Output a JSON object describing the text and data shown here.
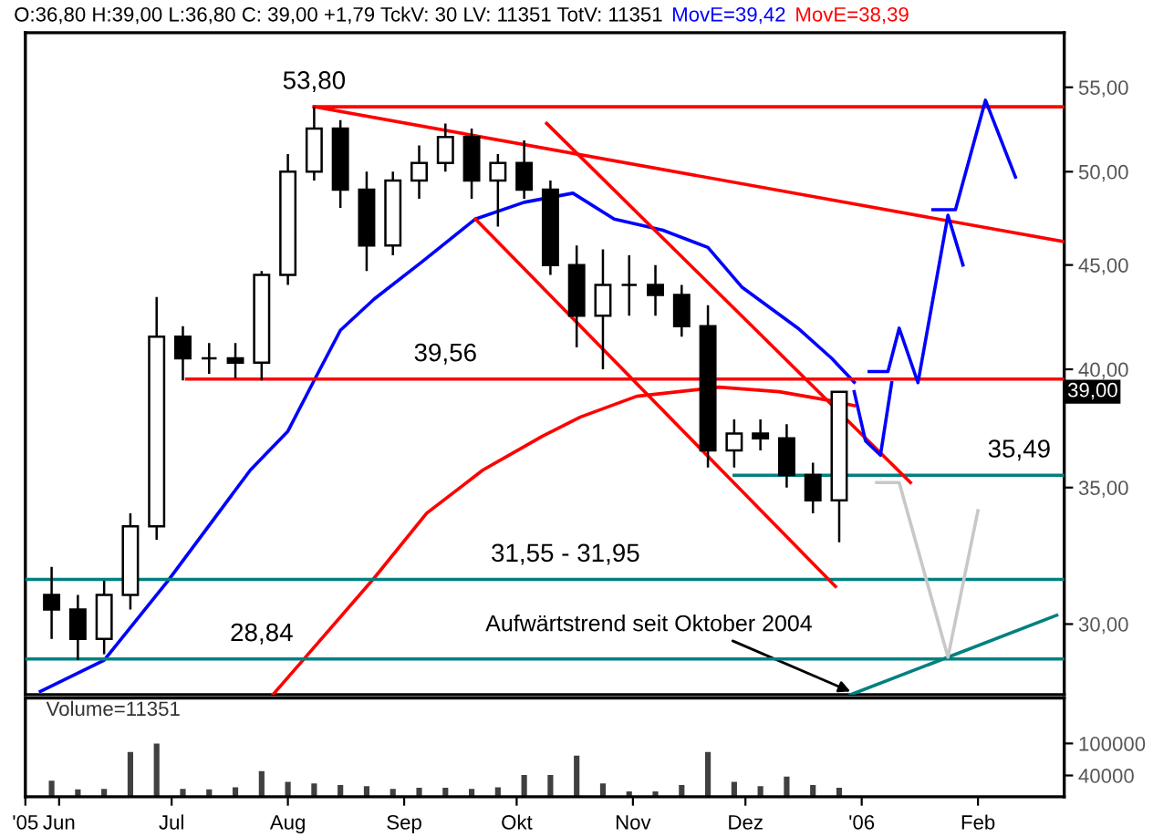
{
  "chart_data": [
    {
      "type": "candlestick",
      "title": "O:36,80 H:39,00 L:36,80 C: 39,00 +1,79 TckV: 30 LV: 11351 TotV: 11351",
      "x": [
        "2005-05-30",
        "2005-06-06",
        "2005-06-13",
        "2005-06-20",
        "2005-06-27",
        "2005-07-04",
        "2005-07-11",
        "2005-07-18",
        "2005-07-25",
        "2005-08-01",
        "2005-08-08",
        "2005-08-15",
        "2005-08-22",
        "2005-08-29",
        "2005-09-05",
        "2005-09-12",
        "2005-09-19",
        "2005-09-26",
        "2005-10-03",
        "2005-10-10",
        "2005-10-17",
        "2005-10-24",
        "2005-10-31",
        "2005-11-07",
        "2005-11-14",
        "2005-11-21",
        "2005-11-28",
        "2005-12-05",
        "2005-12-12",
        "2005-12-19",
        "2005-12-26"
      ],
      "ohlc": [
        [
          31,
          32,
          29.5,
          30.5
        ],
        [
          30.5,
          31,
          28.8,
          29.5
        ],
        [
          29.5,
          31.5,
          29,
          31
        ],
        [
          31,
          34,
          30.5,
          33.5
        ],
        [
          33.5,
          43.4,
          33,
          41.5
        ],
        [
          41.5,
          42,
          39.5,
          40.5
        ],
        [
          40.5,
          41.2,
          39.8,
          40.5
        ],
        [
          40.5,
          41.2,
          39.6,
          40.3
        ],
        [
          40.3,
          44.7,
          39.5,
          44.5
        ],
        [
          44.5,
          51,
          44,
          50
        ],
        [
          50,
          53.8,
          49.5,
          52.5
        ],
        [
          52.5,
          53,
          48,
          49
        ],
        [
          49,
          50,
          44.7,
          46
        ],
        [
          46,
          50,
          45.5,
          49.5
        ],
        [
          49.5,
          51.5,
          48.5,
          50.5
        ],
        [
          50.5,
          52.8,
          50,
          52
        ],
        [
          52,
          52.5,
          48.5,
          49.5
        ],
        [
          49.5,
          51,
          47,
          50.5
        ],
        [
          50.5,
          51.8,
          48.5,
          49
        ],
        [
          49,
          49.5,
          44.5,
          45
        ],
        [
          45,
          46,
          41,
          42.5
        ],
        [
          42.5,
          45.8,
          40,
          44
        ],
        [
          44,
          45.5,
          42.5,
          44
        ],
        [
          44,
          45,
          42.5,
          43.5
        ],
        [
          43.5,
          44,
          41.5,
          42
        ],
        [
          42,
          43,
          35.8,
          36.5
        ],
        [
          36.5,
          37.8,
          35.8,
          37.2
        ],
        [
          37.2,
          37.8,
          36.5,
          37
        ],
        [
          37,
          37.6,
          35,
          35.5
        ],
        [
          35.5,
          36,
          34,
          34.5
        ],
        [
          34.5,
          39,
          32.9,
          39
        ]
      ],
      "series": [
        {
          "type": "line",
          "name": "MovE=39,42",
          "color": "#0000ff",
          "x": [
            "2005-05-27",
            "2005-06-13",
            "2005-06-30",
            "2005-07-22",
            "2005-08-01",
            "2005-08-08",
            "2005-08-15",
            "2005-08-24",
            "2005-09-06",
            "2005-09-20",
            "2005-10-03",
            "2005-10-16",
            "2005-10-27",
            "2005-11-09",
            "2005-11-21",
            "2005-11-30",
            "2005-12-15",
            "2005-12-24",
            "2005-12-30"
          ],
          "values": [
            27.8,
            28.8,
            31.5,
            35.7,
            37.3,
            39.5,
            41.8,
            43.3,
            45.2,
            47.4,
            48.3,
            48.8,
            47.4,
            46.8,
            45.9,
            43.9,
            41.9,
            40.5,
            39.42
          ]
        },
        {
          "type": "line",
          "name": "MovE=38,39",
          "color": "#ff0000",
          "x": [
            "2005-07-28",
            "2005-08-05",
            "2005-08-24",
            "2005-09-07",
            "2005-09-22",
            "2005-10-08",
            "2005-10-18",
            "2005-11-02",
            "2005-11-24",
            "2005-12-10",
            "2005-12-24",
            "2005-12-30"
          ],
          "values": [
            27.7,
            28.8,
            31.6,
            34,
            35.7,
            37.1,
            37.9,
            38.8,
            39.2,
            39,
            38.6,
            38.39
          ]
        },
        {
          "type": "line",
          "color": "#ff0000",
          "x": [
            "2005-08-08",
            "2006-02-24"
          ],
          "values": [
            53.8,
            53.8
          ]
        },
        {
          "type": "line",
          "color": "#ff0000",
          "x": [
            "2005-07-05",
            "2006-02-24"
          ],
          "values": [
            39.56,
            39.56
          ]
        },
        {
          "type": "line",
          "color": "#008080",
          "x": [
            "2005-11-28",
            "2006-02-24"
          ],
          "values": [
            35.49,
            35.49
          ]
        },
        {
          "type": "line",
          "color": "#008080",
          "x": [
            "2005-05-23",
            "2006-02-24"
          ],
          "values": [
            31.55,
            31.55
          ]
        },
        {
          "type": "line",
          "color": "#008080",
          "x": [
            "2005-05-23",
            "2006-02-24"
          ],
          "values": [
            28.84,
            28.84
          ]
        },
        {
          "type": "line",
          "color": "#ff0000",
          "x": [
            "2005-08-08",
            "2006-02-24"
          ],
          "values": [
            53.8,
            46.2
          ]
        },
        {
          "type": "line",
          "color": "#ff0000",
          "x": [
            "2005-10-09",
            "2006-01-14"
          ],
          "values": [
            52.8,
            35.2
          ]
        },
        {
          "type": "line",
          "color": "#ff0000",
          "x": [
            "2005-09-20",
            "2005-12-25"
          ],
          "values": [
            47.4,
            31.3
          ]
        },
        {
          "type": "line",
          "color": "#008080",
          "x": [
            "2005-12-29",
            "2006-02-22"
          ],
          "values": [
            27.7,
            30.3
          ]
        },
        {
          "type": "line",
          "color": "#0000ff",
          "x": [
            "2005-12-30",
            "2006-01-02",
            "2006-01-06",
            "2006-01-09"
          ],
          "values": [
            39.0,
            36.9,
            36.3,
            39.4
          ]
        },
        {
          "type": "line",
          "color": "#0000ff",
          "x": [
            "2006-01-03",
            "2006-01-08",
            "2006-01-11",
            "2006-01-16",
            "2006-01-24",
            "2006-01-28"
          ],
          "values": [
            39.9,
            39.9,
            41.9,
            39.4,
            47.6,
            45.0
          ]
        },
        {
          "type": "line",
          "color": "#0000ff",
          "x": [
            "2006-01-20",
            "2006-01-26",
            "2006-02-03",
            "2006-02-11"
          ],
          "values": [
            47.9,
            47.9,
            54.2,
            49.7
          ]
        },
        {
          "type": "line",
          "color": "#c8c8c8",
          "x": [
            "2006-01-05",
            "2006-01-11",
            "2006-01-24",
            "2006-02-01"
          ],
          "values": [
            35.2,
            35.2,
            28.9,
            34.1
          ]
        }
      ],
      "annotations": [
        {
          "text": "53,80",
          "x": "2005-08-08",
          "y": 53.8
        },
        {
          "text": "39,56",
          "x": "2005-09-12",
          "y": 39.56
        },
        {
          "text": "35,49",
          "x": "2006-02-12",
          "y": 35.49
        },
        {
          "text": "31,55 - 31,95",
          "x": "2005-10-14",
          "y": 31.55
        },
        {
          "text": "28,84",
          "x": "2005-07-25",
          "y": 28.84
        },
        {
          "text": "Aufwärtstrend seit Oktober 2004",
          "x": "2005-12-29",
          "y": 27.8
        },
        {
          "text": "39,00",
          "y": 39
        }
      ],
      "log": "y",
      "legend": "top",
      "tick_labels": "y",
      "xlim": [
        "2005-05-23",
        "2006-02-24"
      ],
      "ylim": [
        27.7,
        58.5
      ],
      "yticks": [
        {
          "value": 30,
          "label": "30,00"
        },
        {
          "value": 35,
          "label": "35,00"
        },
        {
          "value": 40,
          "label": "40,00"
        },
        {
          "value": 45,
          "label": "45,00"
        },
        {
          "value": 50,
          "label": "50,00"
        },
        {
          "value": 55,
          "label": "55,00"
        }
      ]
    },
    {
      "type": "bar",
      "color": "#404040",
      "x": [
        "2005-05-30",
        "2005-06-06",
        "2005-06-13",
        "2005-06-20",
        "2005-06-27",
        "2005-07-04",
        "2005-07-11",
        "2005-07-18",
        "2005-07-25",
        "2005-08-01",
        "2005-08-08",
        "2005-08-15",
        "2005-08-22",
        "2005-08-29",
        "2005-09-05",
        "2005-09-12",
        "2005-09-19",
        "2005-09-26",
        "2005-10-03",
        "2005-10-10",
        "2005-10-17",
        "2005-10-24",
        "2005-10-31",
        "2005-11-07",
        "2005-11-14",
        "2005-11-21",
        "2005-11-28",
        "2005-12-05",
        "2005-12-12",
        "2005-12-19",
        "2005-12-26"
      ],
      "values": [
        30000,
        14000,
        15000,
        84000,
        100000,
        15000,
        14000,
        18000,
        48000,
        28000,
        25000,
        22000,
        20000,
        15000,
        17000,
        17000,
        15000,
        18000,
        41000,
        41000,
        77000,
        25000,
        10000,
        10000,
        22000,
        84000,
        28000,
        20000,
        38000,
        22000,
        17000
      ],
      "annotations": [
        "Volume=11351"
      ],
      "xlim": [
        "2005-05-23",
        "2006-02-24"
      ],
      "xticks": [
        {
          "value": "2005-05-23",
          "label": "'05"
        },
        {
          "value": "2005-06-01",
          "label": "Jun"
        },
        {
          "value": "2005-07-01",
          "label": "Jul"
        },
        {
          "value": "2005-08-01",
          "label": "Aug"
        },
        {
          "value": "2005-09-01",
          "label": "Sep"
        },
        {
          "value": "2005-10-01",
          "label": "Okt"
        },
        {
          "value": "2005-11-01",
          "label": "Nov"
        },
        {
          "value": "2005-12-01",
          "label": "Dez"
        },
        {
          "value": "2006-01-01",
          "label": "'06"
        },
        {
          "value": "2006-02-01",
          "label": "Feb"
        }
      ],
      "ylim": [
        0,
        185000
      ],
      "yticks": [
        40000,
        100000
      ]
    }
  ]
}
